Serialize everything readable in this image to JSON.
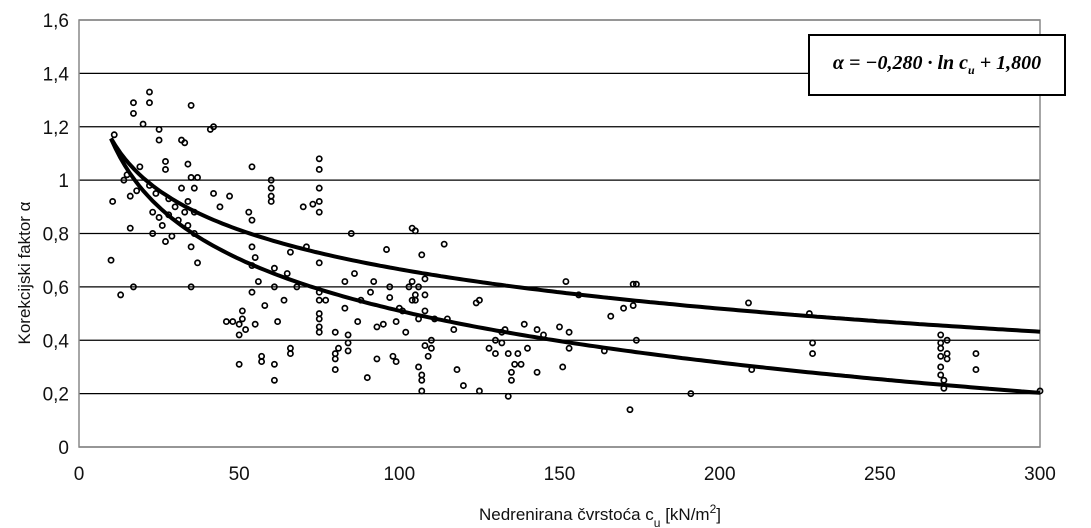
{
  "chart_data": {
    "type": "scatter",
    "xlabel": "Nedrenirana  čvrstoća c",
    "xlabel_sub": "u",
    "xlabel_unit": " [kN/m",
    "xlabel_sup": "2",
    "xlabel_end": "]",
    "ylabel": "Korekcijski faktor α",
    "xlim": [
      0,
      300
    ],
    "ylim": [
      0,
      1.6
    ],
    "x_ticks": [
      "0",
      "50",
      "100",
      "150",
      "200",
      "250",
      "300"
    ],
    "y_ticks": [
      "0",
      "0,2",
      "0,4",
      "0,6",
      "0,8",
      "1",
      "1,2",
      "1,4",
      "1,6"
    ],
    "grid": "horizontal",
    "equation": {
      "lhs": "α",
      "eq": " = −0,280 · ln c",
      "sub": "u",
      "tail": " + 1,800"
    },
    "curves": [
      {
        "type": "logarithmic",
        "a": -0.28,
        "b": 1.8,
        "x_range": [
          10,
          300
        ]
      },
      {
        "type": "logarithmic",
        "a": -0.213,
        "b": 1.647,
        "x_range": [
          10,
          300
        ]
      }
    ],
    "points": [
      [
        10,
        0.7
      ],
      [
        10.5,
        0.92
      ],
      [
        11,
        1.17
      ],
      [
        13,
        0.57
      ],
      [
        14,
        1.0
      ],
      [
        15,
        1.02
      ],
      [
        16,
        0.82
      ],
      [
        16,
        0.94
      ],
      [
        17,
        1.29
      ],
      [
        17,
        1.25
      ],
      [
        17,
        0.6
      ],
      [
        18,
        0.96
      ],
      [
        19,
        1.05
      ],
      [
        20,
        1.21
      ],
      [
        22,
        1.33
      ],
      [
        22,
        1.29
      ],
      [
        22,
        0.98
      ],
      [
        23,
        0.88
      ],
      [
        23,
        0.8
      ],
      [
        24,
        0.95
      ],
      [
        25,
        1.19
      ],
      [
        25,
        1.15
      ],
      [
        25,
        0.86
      ],
      [
        26,
        0.83
      ],
      [
        27,
        0.77
      ],
      [
        27,
        1.07
      ],
      [
        27,
        1.04
      ],
      [
        28,
        0.93
      ],
      [
        28,
        0.87
      ],
      [
        29,
        0.79
      ],
      [
        30,
        0.9
      ],
      [
        31,
        0.85
      ],
      [
        32,
        1.15
      ],
      [
        32,
        0.97
      ],
      [
        33,
        1.14
      ],
      [
        33,
        0.88
      ],
      [
        34,
        0.92
      ],
      [
        34,
        0.83
      ],
      [
        34,
        1.06
      ],
      [
        35,
        0.6
      ],
      [
        35,
        1.28
      ],
      [
        35,
        1.01
      ],
      [
        35,
        0.75
      ],
      [
        36,
        0.97
      ],
      [
        36,
        0.88
      ],
      [
        36,
        0.8
      ],
      [
        37,
        0.69
      ],
      [
        37,
        1.01
      ],
      [
        41,
        1.19
      ],
      [
        42,
        1.2
      ],
      [
        42,
        0.95
      ],
      [
        44,
        0.9
      ],
      [
        46,
        0.47
      ],
      [
        47,
        0.94
      ],
      [
        48,
        0.47
      ],
      [
        50,
        0.31
      ],
      [
        50,
        0.42
      ],
      [
        50,
        0.46
      ],
      [
        51,
        0.51
      ],
      [
        51,
        0.48
      ],
      [
        52,
        0.44
      ],
      [
        53,
        0.88
      ],
      [
        54,
        1.05
      ],
      [
        54,
        0.85
      ],
      [
        54,
        0.75
      ],
      [
        54,
        0.68
      ],
      [
        54,
        0.58
      ],
      [
        55,
        0.71
      ],
      [
        55,
        0.46
      ],
      [
        56,
        0.62
      ],
      [
        57,
        0.32
      ],
      [
        57,
        0.34
      ],
      [
        58,
        0.53
      ],
      [
        60,
        1.0
      ],
      [
        60,
        0.97
      ],
      [
        60,
        0.94
      ],
      [
        60,
        0.92
      ],
      [
        61,
        0.67
      ],
      [
        61,
        0.6
      ],
      [
        61,
        0.31
      ],
      [
        61,
        0.25
      ],
      [
        62,
        0.47
      ],
      [
        64,
        0.55
      ],
      [
        65,
        0.65
      ],
      [
        66,
        0.73
      ],
      [
        66,
        0.35
      ],
      [
        66,
        0.37
      ],
      [
        68,
        0.6
      ],
      [
        70,
        0.9
      ],
      [
        71,
        0.75
      ],
      [
        73,
        0.91
      ],
      [
        75,
        1.08
      ],
      [
        75,
        1.04
      ],
      [
        75,
        0.97
      ],
      [
        75,
        0.92
      ],
      [
        75,
        0.88
      ],
      [
        75,
        0.69
      ],
      [
        75,
        0.58
      ],
      [
        75,
        0.55
      ],
      [
        75,
        0.5
      ],
      [
        75,
        0.48
      ],
      [
        75,
        0.45
      ],
      [
        75,
        0.43
      ],
      [
        77,
        0.55
      ],
      [
        80,
        0.29
      ],
      [
        80,
        0.33
      ],
      [
        80,
        0.35
      ],
      [
        80,
        0.43
      ],
      [
        81,
        0.37
      ],
      [
        83,
        0.62
      ],
      [
        83,
        0.52
      ],
      [
        84,
        0.42
      ],
      [
        84,
        0.39
      ],
      [
        84,
        0.36
      ],
      [
        85,
        0.8
      ],
      [
        86,
        0.65
      ],
      [
        87,
        0.47
      ],
      [
        88,
        0.55
      ],
      [
        90,
        0.26
      ],
      [
        91,
        0.58
      ],
      [
        92,
        0.62
      ],
      [
        93,
        0.45
      ],
      [
        93,
        0.33
      ],
      [
        95,
        0.46
      ],
      [
        96,
        0.74
      ],
      [
        97,
        0.6
      ],
      [
        97,
        0.56
      ],
      [
        98,
        0.34
      ],
      [
        99,
        0.32
      ],
      [
        99,
        0.47
      ],
      [
        100,
        0.52
      ],
      [
        101,
        0.51
      ],
      [
        102,
        0.43
      ],
      [
        103,
        0.6
      ],
      [
        104,
        0.62
      ],
      [
        104,
        0.55
      ],
      [
        104,
        0.82
      ],
      [
        105,
        0.57
      ],
      [
        105,
        0.81
      ],
      [
        105,
        0.55
      ],
      [
        106,
        0.48
      ],
      [
        106,
        0.3
      ],
      [
        106,
        0.6
      ],
      [
        107,
        0.27
      ],
      [
        107,
        0.25
      ],
      [
        107,
        0.21
      ],
      [
        107,
        0.72
      ],
      [
        108,
        0.57
      ],
      [
        108,
        0.63
      ],
      [
        108,
        0.51
      ],
      [
        108,
        0.38
      ],
      [
        109,
        0.34
      ],
      [
        110,
        0.37
      ],
      [
        110,
        0.4
      ],
      [
        111,
        0.48
      ],
      [
        114,
        0.76
      ],
      [
        115,
        0.48
      ],
      [
        117,
        0.44
      ],
      [
        118,
        0.29
      ],
      [
        120,
        0.23
      ],
      [
        124,
        0.54
      ],
      [
        125,
        0.55
      ],
      [
        125,
        0.21
      ],
      [
        128,
        0.37
      ],
      [
        130,
        0.4
      ],
      [
        130,
        0.35
      ],
      [
        132,
        0.39
      ],
      [
        132,
        0.43
      ],
      [
        133,
        0.44
      ],
      [
        134,
        0.35
      ],
      [
        134,
        0.19
      ],
      [
        135,
        0.28
      ],
      [
        135,
        0.25
      ],
      [
        136,
        0.31
      ],
      [
        137,
        0.35
      ],
      [
        138,
        0.31
      ],
      [
        139,
        0.46
      ],
      [
        140,
        0.37
      ],
      [
        143,
        0.28
      ],
      [
        143,
        0.44
      ],
      [
        145,
        0.42
      ],
      [
        150,
        0.45
      ],
      [
        151,
        0.3
      ],
      [
        152,
        0.62
      ],
      [
        153,
        0.43
      ],
      [
        153,
        0.37
      ],
      [
        156,
        0.57
      ],
      [
        164,
        0.36
      ],
      [
        166,
        0.49
      ],
      [
        170,
        0.52
      ],
      [
        172,
        0.14
      ],
      [
        173,
        0.61
      ],
      [
        173,
        0.53
      ],
      [
        174,
        0.61
      ],
      [
        174,
        0.4
      ],
      [
        191,
        0.2
      ],
      [
        209,
        0.54
      ],
      [
        210,
        0.29
      ],
      [
        228,
        0.5
      ],
      [
        229,
        0.35
      ],
      [
        229,
        0.39
      ],
      [
        269,
        0.42
      ],
      [
        269,
        0.39
      ],
      [
        269,
        0.37
      ],
      [
        269,
        0.34
      ],
      [
        269,
        0.3
      ],
      [
        269,
        0.27
      ],
      [
        270,
        0.25
      ],
      [
        270,
        0.22
      ],
      [
        271,
        0.4
      ],
      [
        271,
        0.35
      ],
      [
        271,
        0.33
      ],
      [
        280,
        0.35
      ],
      [
        280,
        0.29
      ],
      [
        300,
        0.21
      ]
    ]
  }
}
